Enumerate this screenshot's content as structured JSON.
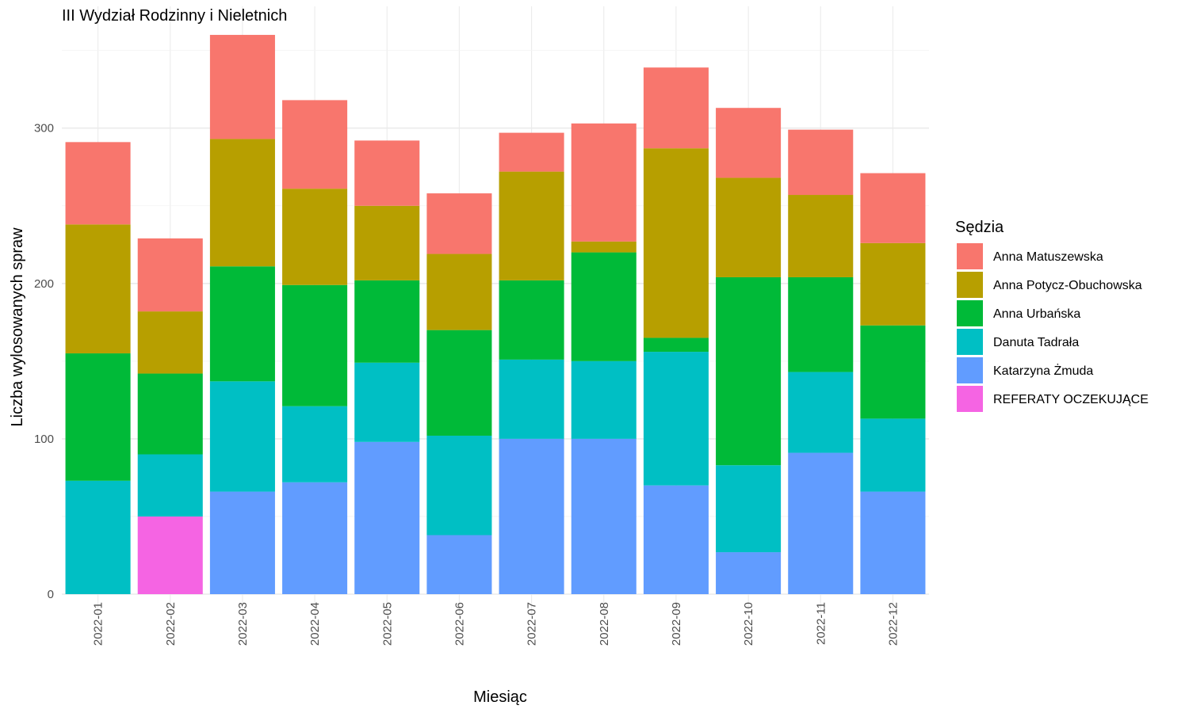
{
  "chart_data": {
    "type": "bar",
    "stacked": true,
    "title": "III Wydział Rodzinny i Nieletnich",
    "xlabel": "Miesiąc",
    "ylabel": "Liczba wylosowanych spraw",
    "ylim": [
      0,
      370
    ],
    "yticks": [
      0,
      100,
      200,
      300
    ],
    "grid": true,
    "legend_title": "Sędzia",
    "legend_position": "right",
    "categories": [
      "2022-01",
      "2022-02",
      "2022-03",
      "2022-04",
      "2022-05",
      "2022-06",
      "2022-07",
      "2022-08",
      "2022-09",
      "2022-10",
      "2022-11",
      "2022-12"
    ],
    "series": [
      {
        "name": "Anna Matuszewska",
        "color": "#F8766D",
        "values": [
          53,
          47,
          67,
          57,
          42,
          39,
          25,
          76,
          52,
          45,
          42,
          45
        ]
      },
      {
        "name": "Anna Potycz-Obuchowska",
        "color": "#B79F00",
        "values": [
          83,
          40,
          82,
          62,
          48,
          49,
          70,
          7,
          122,
          64,
          53,
          53
        ]
      },
      {
        "name": "Anna Urbańska",
        "color": "#00BA38",
        "values": [
          82,
          52,
          74,
          78,
          53,
          68,
          51,
          70,
          9,
          121,
          61,
          60
        ]
      },
      {
        "name": "Danuta Tadrała",
        "color": "#00BFC4",
        "values": [
          73,
          40,
          71,
          49,
          51,
          64,
          51,
          50,
          86,
          56,
          52,
          47
        ]
      },
      {
        "name": "Katarzyna Żmuda",
        "color": "#619CFF",
        "values": [
          0,
          0,
          66,
          72,
          98,
          38,
          100,
          100,
          70,
          27,
          91,
          66
        ]
      },
      {
        "name": "REFERATY OCZEKUJĄCE",
        "color": "#F564E3",
        "values": [
          0,
          50,
          0,
          0,
          0,
          0,
          0,
          0,
          0,
          0,
          0,
          0
        ]
      }
    ]
  }
}
